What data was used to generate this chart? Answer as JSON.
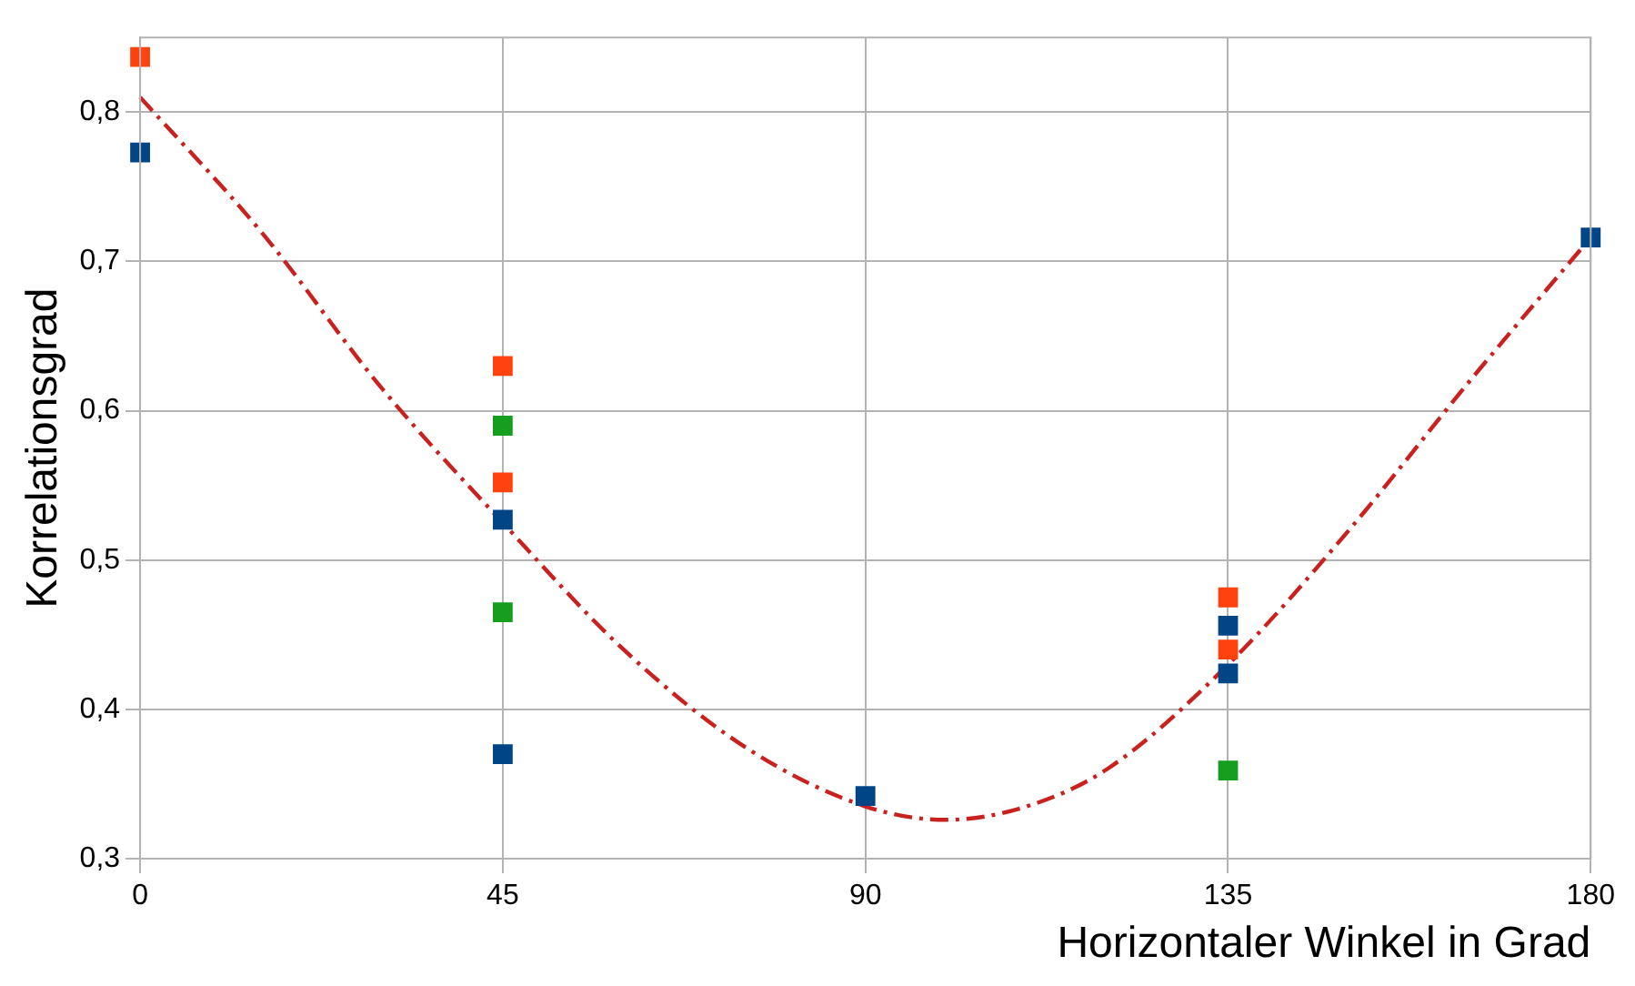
{
  "chart_data": {
    "type": "scatter",
    "xlabel": "Horizontaler Winkel in Grad",
    "ylabel": "Korrelationsgrad",
    "marker": "square",
    "grid": true,
    "xlim": [
      0,
      180
    ],
    "xticks": [
      0,
      45,
      90,
      135,
      180
    ],
    "ylim": [
      0.3,
      0.85
    ],
    "yticks": [
      {
        "value": 0.3,
        "label": "0,3"
      },
      {
        "value": 0.4,
        "label": "0,4"
      },
      {
        "value": 0.5,
        "label": "0,5"
      },
      {
        "value": 0.6,
        "label": "0,6"
      },
      {
        "value": 0.7,
        "label": "0,7"
      },
      {
        "value": 0.8,
        "label": "0,8"
      }
    ],
    "series": [
      {
        "type": "line",
        "color": "#c9211e",
        "line_style": "dashed",
        "marker": "none",
        "x": [
          0,
          15,
          30,
          45,
          60,
          75,
          90,
          100,
          110,
          120,
          135,
          150,
          165,
          180
        ],
        "values": [
          0.81,
          0.72,
          0.615,
          0.525,
          0.44,
          0.375,
          0.335,
          0.326,
          0.335,
          0.36,
          0.43,
          0.52,
          0.62,
          0.716
        ]
      },
      {
        "color": "#ff420e",
        "x": [
          0,
          45,
          45,
          135,
          135
        ],
        "values": [
          0.837,
          0.63,
          0.552,
          0.475,
          0.44
        ]
      },
      {
        "color": "#004586",
        "x": [
          0,
          45,
          45,
          90,
          135,
          135,
          180
        ],
        "values": [
          0.773,
          0.527,
          0.37,
          0.342,
          0.456,
          0.424,
          0.716
        ]
      },
      {
        "color": "#169e1f",
        "x": [
          45,
          45,
          135
        ],
        "values": [
          0.59,
          0.465,
          0.359
        ]
      }
    ]
  }
}
